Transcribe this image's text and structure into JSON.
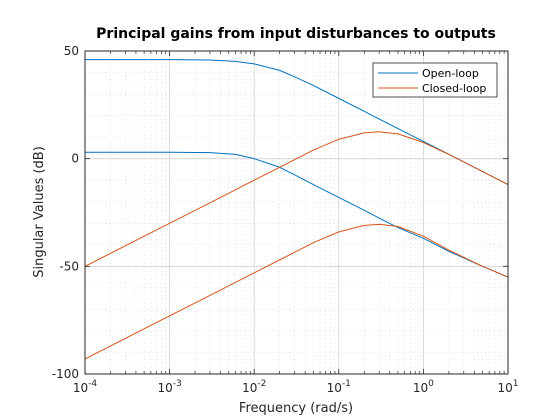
{
  "chart_data": {
    "type": "line",
    "title": "Principal gains from input disturbances to outputs",
    "xlabel": "Frequency (rad/s)",
    "ylabel": "Singular Values (dB)",
    "x_scale": "log",
    "xlim": [
      0.0001,
      10
    ],
    "ylim": [
      -100,
      50
    ],
    "x_tick_labels": [
      {
        "base": "10",
        "exp": "-4"
      },
      {
        "base": "10",
        "exp": "-3"
      },
      {
        "base": "10",
        "exp": "-2"
      },
      {
        "base": "10",
        "exp": "-1"
      },
      {
        "base": "10",
        "exp": "0"
      },
      {
        "base": "10",
        "exp": "1"
      }
    ],
    "y_ticks": [
      -100,
      -50,
      0,
      50
    ],
    "grid": true,
    "minor_grid": true,
    "legend_position": "top-right",
    "series": [
      {
        "name": "Open-loop",
        "color": "#0072BD",
        "lines": [
          [
            [
              0.0001,
              46
            ],
            [
              0.001,
              46
            ],
            [
              0.003,
              45.8
            ],
            [
              0.006,
              45.2
            ],
            [
              0.01,
              44
            ],
            [
              0.02,
              41
            ],
            [
              0.03,
              38
            ],
            [
              0.05,
              34
            ],
            [
              0.1,
              28
            ],
            [
              0.2,
              22
            ],
            [
              0.3,
              18.4
            ],
            [
              0.5,
              14
            ],
            [
              1,
              8
            ],
            [
              2,
              2
            ],
            [
              5,
              -6
            ],
            [
              10,
              -12
            ]
          ],
          [
            [
              0.0001,
              3
            ],
            [
              0.001,
              3
            ],
            [
              0.003,
              2.8
            ],
            [
              0.006,
              2
            ],
            [
              0.01,
              0
            ],
            [
              0.02,
              -4
            ],
            [
              0.03,
              -7.5
            ],
            [
              0.05,
              -12
            ],
            [
              0.1,
              -18
            ],
            [
              0.2,
              -24
            ],
            [
              0.3,
              -27.6
            ],
            [
              0.5,
              -32
            ],
            [
              1,
              -37
            ],
            [
              2,
              -43
            ],
            [
              5,
              -50
            ],
            [
              10,
              -55
            ]
          ]
        ]
      },
      {
        "name": "Closed-loop",
        "color": "#D95319",
        "lines": [
          [
            [
              0.0001,
              -50
            ],
            [
              0.001,
              -30
            ],
            [
              0.003,
              -20.5
            ],
            [
              0.01,
              -10
            ],
            [
              0.02,
              -4
            ],
            [
              0.03,
              -0.5
            ],
            [
              0.05,
              4
            ],
            [
              0.1,
              9
            ],
            [
              0.2,
              12
            ],
            [
              0.3,
              12.5
            ],
            [
              0.5,
              11.5
            ],
            [
              1,
              7.5
            ],
            [
              2,
              2
            ],
            [
              5,
              -6
            ],
            [
              10,
              -12
            ]
          ],
          [
            [
              0.0001,
              -93
            ],
            [
              0.001,
              -73
            ],
            [
              0.003,
              -63.5
            ],
            [
              0.01,
              -53
            ],
            [
              0.02,
              -47
            ],
            [
              0.03,
              -43.5
            ],
            [
              0.05,
              -39
            ],
            [
              0.1,
              -34
            ],
            [
              0.2,
              -31
            ],
            [
              0.3,
              -30.5
            ],
            [
              0.5,
              -31.5
            ],
            [
              1,
              -36
            ],
            [
              2,
              -42.5
            ],
            [
              5,
              -50
            ],
            [
              10,
              -55
            ]
          ]
        ]
      }
    ]
  }
}
